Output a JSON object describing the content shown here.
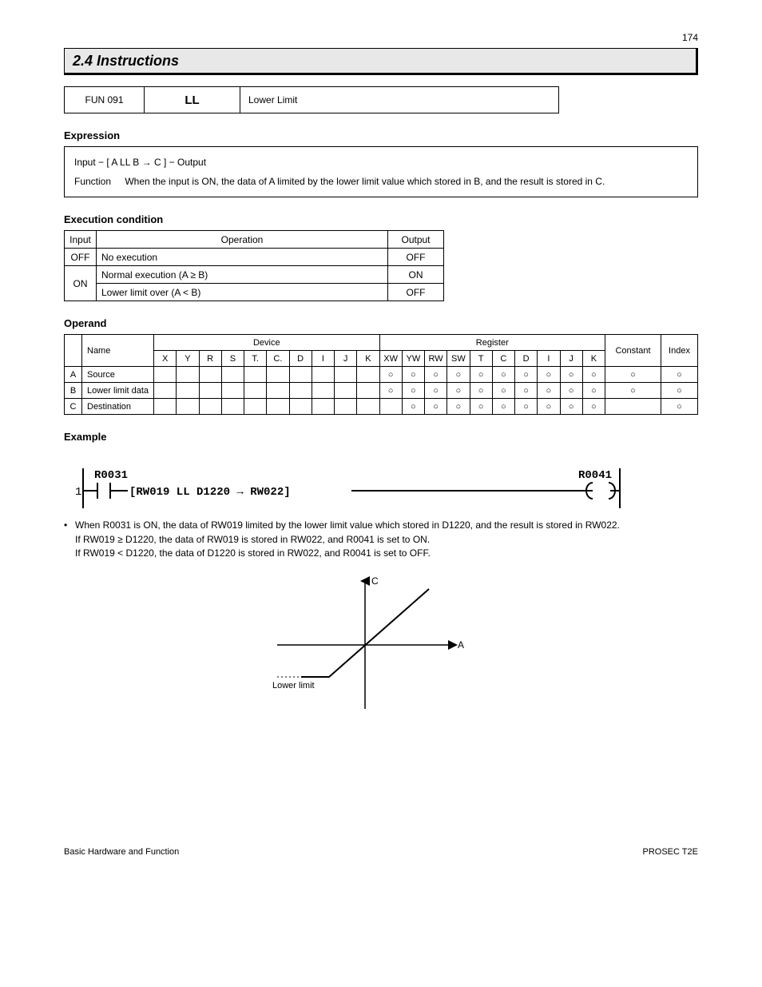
{
  "page_number_top": "174",
  "title_bar": "2.4  Instructions",
  "fun": {
    "label": "FUN 091",
    "mnemonic": "LL",
    "desc": "Lower Limit"
  },
  "expression": {
    "heading": "Expression",
    "line1_prefix": "Input −",
    "line1_body": "[ A LL B → C ]",
    "line1_suffix": "− Output",
    "line2_label": "Function",
    "line2_body": "When the input is ON, the data of A limited by the lower limit value which stored in B, and the result is stored in C."
  },
  "execution": {
    "heading": "Execution condition",
    "rows": [
      {
        "input": "Input",
        "op": "Operation",
        "out": "Output"
      },
      {
        "input": "OFF",
        "op": "No execution",
        "out": "OFF"
      },
      {
        "input_rowspan": "ON",
        "op": "Normal execution (A ≥ B)",
        "out": "ON"
      },
      {
        "op": "Lower limit over (A < B)",
        "out": "OFF"
      }
    ]
  },
  "operand": {
    "heading": "Operand",
    "groups": {
      "register": "Register",
      "device": "Device",
      "constant": "Constant",
      "index": "Index"
    },
    "name_col": "Name",
    "reg_cols": [
      "X",
      "Y",
      "R",
      "S",
      "T.",
      "C.",
      "D",
      "I",
      "J",
      "K"
    ],
    "dev_cols": [
      "XW",
      "YW",
      "RW",
      "SW",
      "T",
      "C",
      "D",
      "I",
      "J",
      "K"
    ],
    "rows": [
      {
        "n": "A",
        "name": "Source",
        "reg": [
          "",
          "",
          "",
          "",
          "",
          "",
          "",
          "",
          "",
          ""
        ],
        "dev": [
          "○",
          "○",
          "○",
          "○",
          "○",
          "○",
          "○",
          "○",
          "○",
          "○"
        ],
        "const": "○",
        "index": "○"
      },
      {
        "n": "B",
        "name": "Lower limit data",
        "reg": [
          "",
          "",
          "",
          "",
          "",
          "",
          "",
          "",
          "",
          ""
        ],
        "dev": [
          "○",
          "○",
          "○",
          "○",
          "○",
          "○",
          "○",
          "○",
          "○",
          "○"
        ],
        "const": "○",
        "index": "○"
      },
      {
        "n": "C",
        "name": "Destination",
        "reg": [
          "",
          "",
          "",
          "",
          "",
          "",
          "",
          "",
          "",
          ""
        ],
        "dev": [
          "",
          "○",
          "○",
          "○",
          "○",
          "○",
          "○",
          "○",
          "○",
          "○"
        ],
        "const": "",
        "index": "○"
      }
    ]
  },
  "example": {
    "heading": "Example",
    "ladder": {
      "left_label": "R0031",
      "rung_num": "1",
      "body": "[RW019   LL   D1220   →   RW022]",
      "right_label": "R0041"
    },
    "lines": [
      "When R0031 is ON, the data of RW019 limited by the lower limit value which stored in D1220, and the result is stored in RW022.",
      "If RW019 ≥ D1220,  the data of RW019 is stored in RW022, and R0041 is set to ON.",
      "If RW019 < D1220,  the data of D1220 is stored in RW022, and R0041 is set to OFF."
    ]
  },
  "diagram": {
    "x_label": "A",
    "y_label": "C",
    "low_label": "Lower limit",
    "color_axis": "#000000",
    "color_line": "#000000",
    "color_dash": "#000000"
  },
  "footer": {
    "left": "Basic Hardware and Function",
    "right": "PROSEC  T2E"
  }
}
